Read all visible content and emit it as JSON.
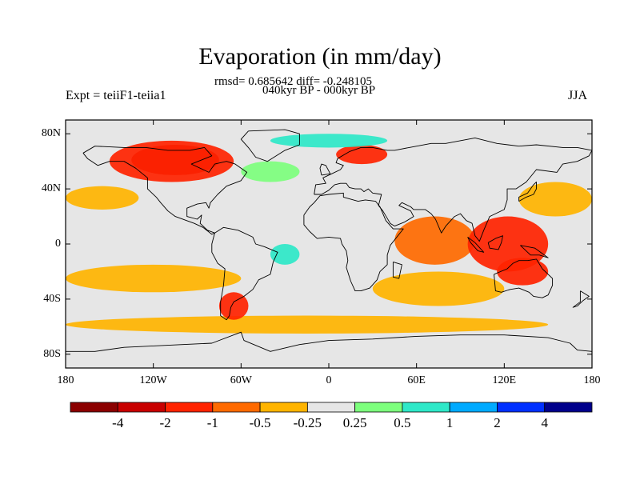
{
  "title": "Evaporation (in mm/day)",
  "stats": "rmsd= 0.685642 diff= -0.248105",
  "period": "040kyr BP - 000kyr BP",
  "experiment": "Expt = teiiF1-teiia1",
  "season": "JJA",
  "map": {
    "projection": "cylindrical equidistant",
    "lon_range": [
      -180,
      180
    ],
    "lat_range": [
      -90,
      90
    ],
    "background_color": "#e6e6e6",
    "coastline_color": "#000000",
    "y_ticks": [
      {
        "lat": 80,
        "label": "80N"
      },
      {
        "lat": 40,
        "label": "40N"
      },
      {
        "lat": 0,
        "label": "0"
      },
      {
        "lat": -40,
        "label": "40S"
      },
      {
        "lat": -80,
        "label": "80S"
      }
    ],
    "x_ticks": [
      {
        "lon": -180,
        "label": "180"
      },
      {
        "lon": -120,
        "label": "120W"
      },
      {
        "lon": -60,
        "label": "60W"
      },
      {
        "lon": 0,
        "label": "0"
      },
      {
        "lon": 60,
        "label": "60E"
      },
      {
        "lon": 120,
        "label": "120E"
      },
      {
        "lon": 180,
        "label": "180"
      }
    ],
    "anomaly_regions": [
      {
        "name": "north-america-strong-decrease",
        "level": -4,
        "lon_min": -135,
        "lon_max": -75,
        "lat_min": 50,
        "lat_max": 72
      },
      {
        "name": "north-america-decrease",
        "level": -2,
        "lon_min": -150,
        "lon_max": -65,
        "lat_min": 45,
        "lat_max": 75
      },
      {
        "name": "scandinavia-decrease",
        "level": -2,
        "lon_min": 5,
        "lon_max": 40,
        "lat_min": 58,
        "lat_max": 72
      },
      {
        "name": "north-atlantic-increase",
        "level": 0.5,
        "lon_min": -60,
        "lon_max": -20,
        "lat_min": 45,
        "lat_max": 60
      },
      {
        "name": "arctic-increase",
        "level": 1,
        "lon_min": -40,
        "lon_max": 40,
        "lat_min": 70,
        "lat_max": 80
      },
      {
        "name": "north-pacific-decrease",
        "level": -0.5,
        "lon_min": 130,
        "lon_max": 180,
        "lat_min": 20,
        "lat_max": 45
      },
      {
        "name": "north-pacific-west-decrease",
        "level": -0.5,
        "lon_min": -180,
        "lon_max": -130,
        "lat_min": 25,
        "lat_max": 42
      },
      {
        "name": "tropical-pacific-decrease",
        "level": -0.25,
        "lon_min": -180,
        "lon_max": -90,
        "lat_min": -10,
        "lat_max": 15
      },
      {
        "name": "south-atlantic-increase",
        "level": 1,
        "lon_min": -40,
        "lon_max": -20,
        "lat_min": -15,
        "lat_max": 0
      },
      {
        "name": "arabian-sea-decrease",
        "level": -1,
        "lon_min": 45,
        "lon_max": 100,
        "lat_min": -15,
        "lat_max": 20
      },
      {
        "name": "maritime-continent-decrease",
        "level": -2,
        "lon_min": 95,
        "lon_max": 150,
        "lat_min": -20,
        "lat_max": 20
      },
      {
        "name": "australia-decrease",
        "level": -2,
        "lon_min": 115,
        "lon_max": 150,
        "lat_min": -30,
        "lat_max": -10
      },
      {
        "name": "indian-ocean-south-decrease",
        "level": -0.5,
        "lon_min": 30,
        "lon_max": 120,
        "lat_min": -45,
        "lat_max": -20
      },
      {
        "name": "south-pacific-decrease",
        "level": -0.5,
        "lon_min": -180,
        "lon_max": -60,
        "lat_min": -35,
        "lat_max": -15
      },
      {
        "name": "southern-ocean-decrease",
        "level": -0.5,
        "lon_min": -180,
        "lon_max": 150,
        "lat_min": -65,
        "lat_max": -52
      },
      {
        "name": "patagonia-decrease",
        "level": -2,
        "lon_min": -75,
        "lon_max": -55,
        "lat_min": -55,
        "lat_max": -35
      }
    ]
  },
  "colorbar": {
    "boundaries": [
      "-4",
      "-2",
      "-1",
      "-0.5",
      "-0.25",
      "0.25",
      "0.5",
      "1",
      "2",
      "4"
    ],
    "colors": [
      "#8b0000",
      "#c80000",
      "#ff2300",
      "#ff6a00",
      "#ffb400",
      "#e6e6e6",
      "#7dff7d",
      "#2ee8c8",
      "#00aaff",
      "#0030ff",
      "#00008b"
    ]
  }
}
